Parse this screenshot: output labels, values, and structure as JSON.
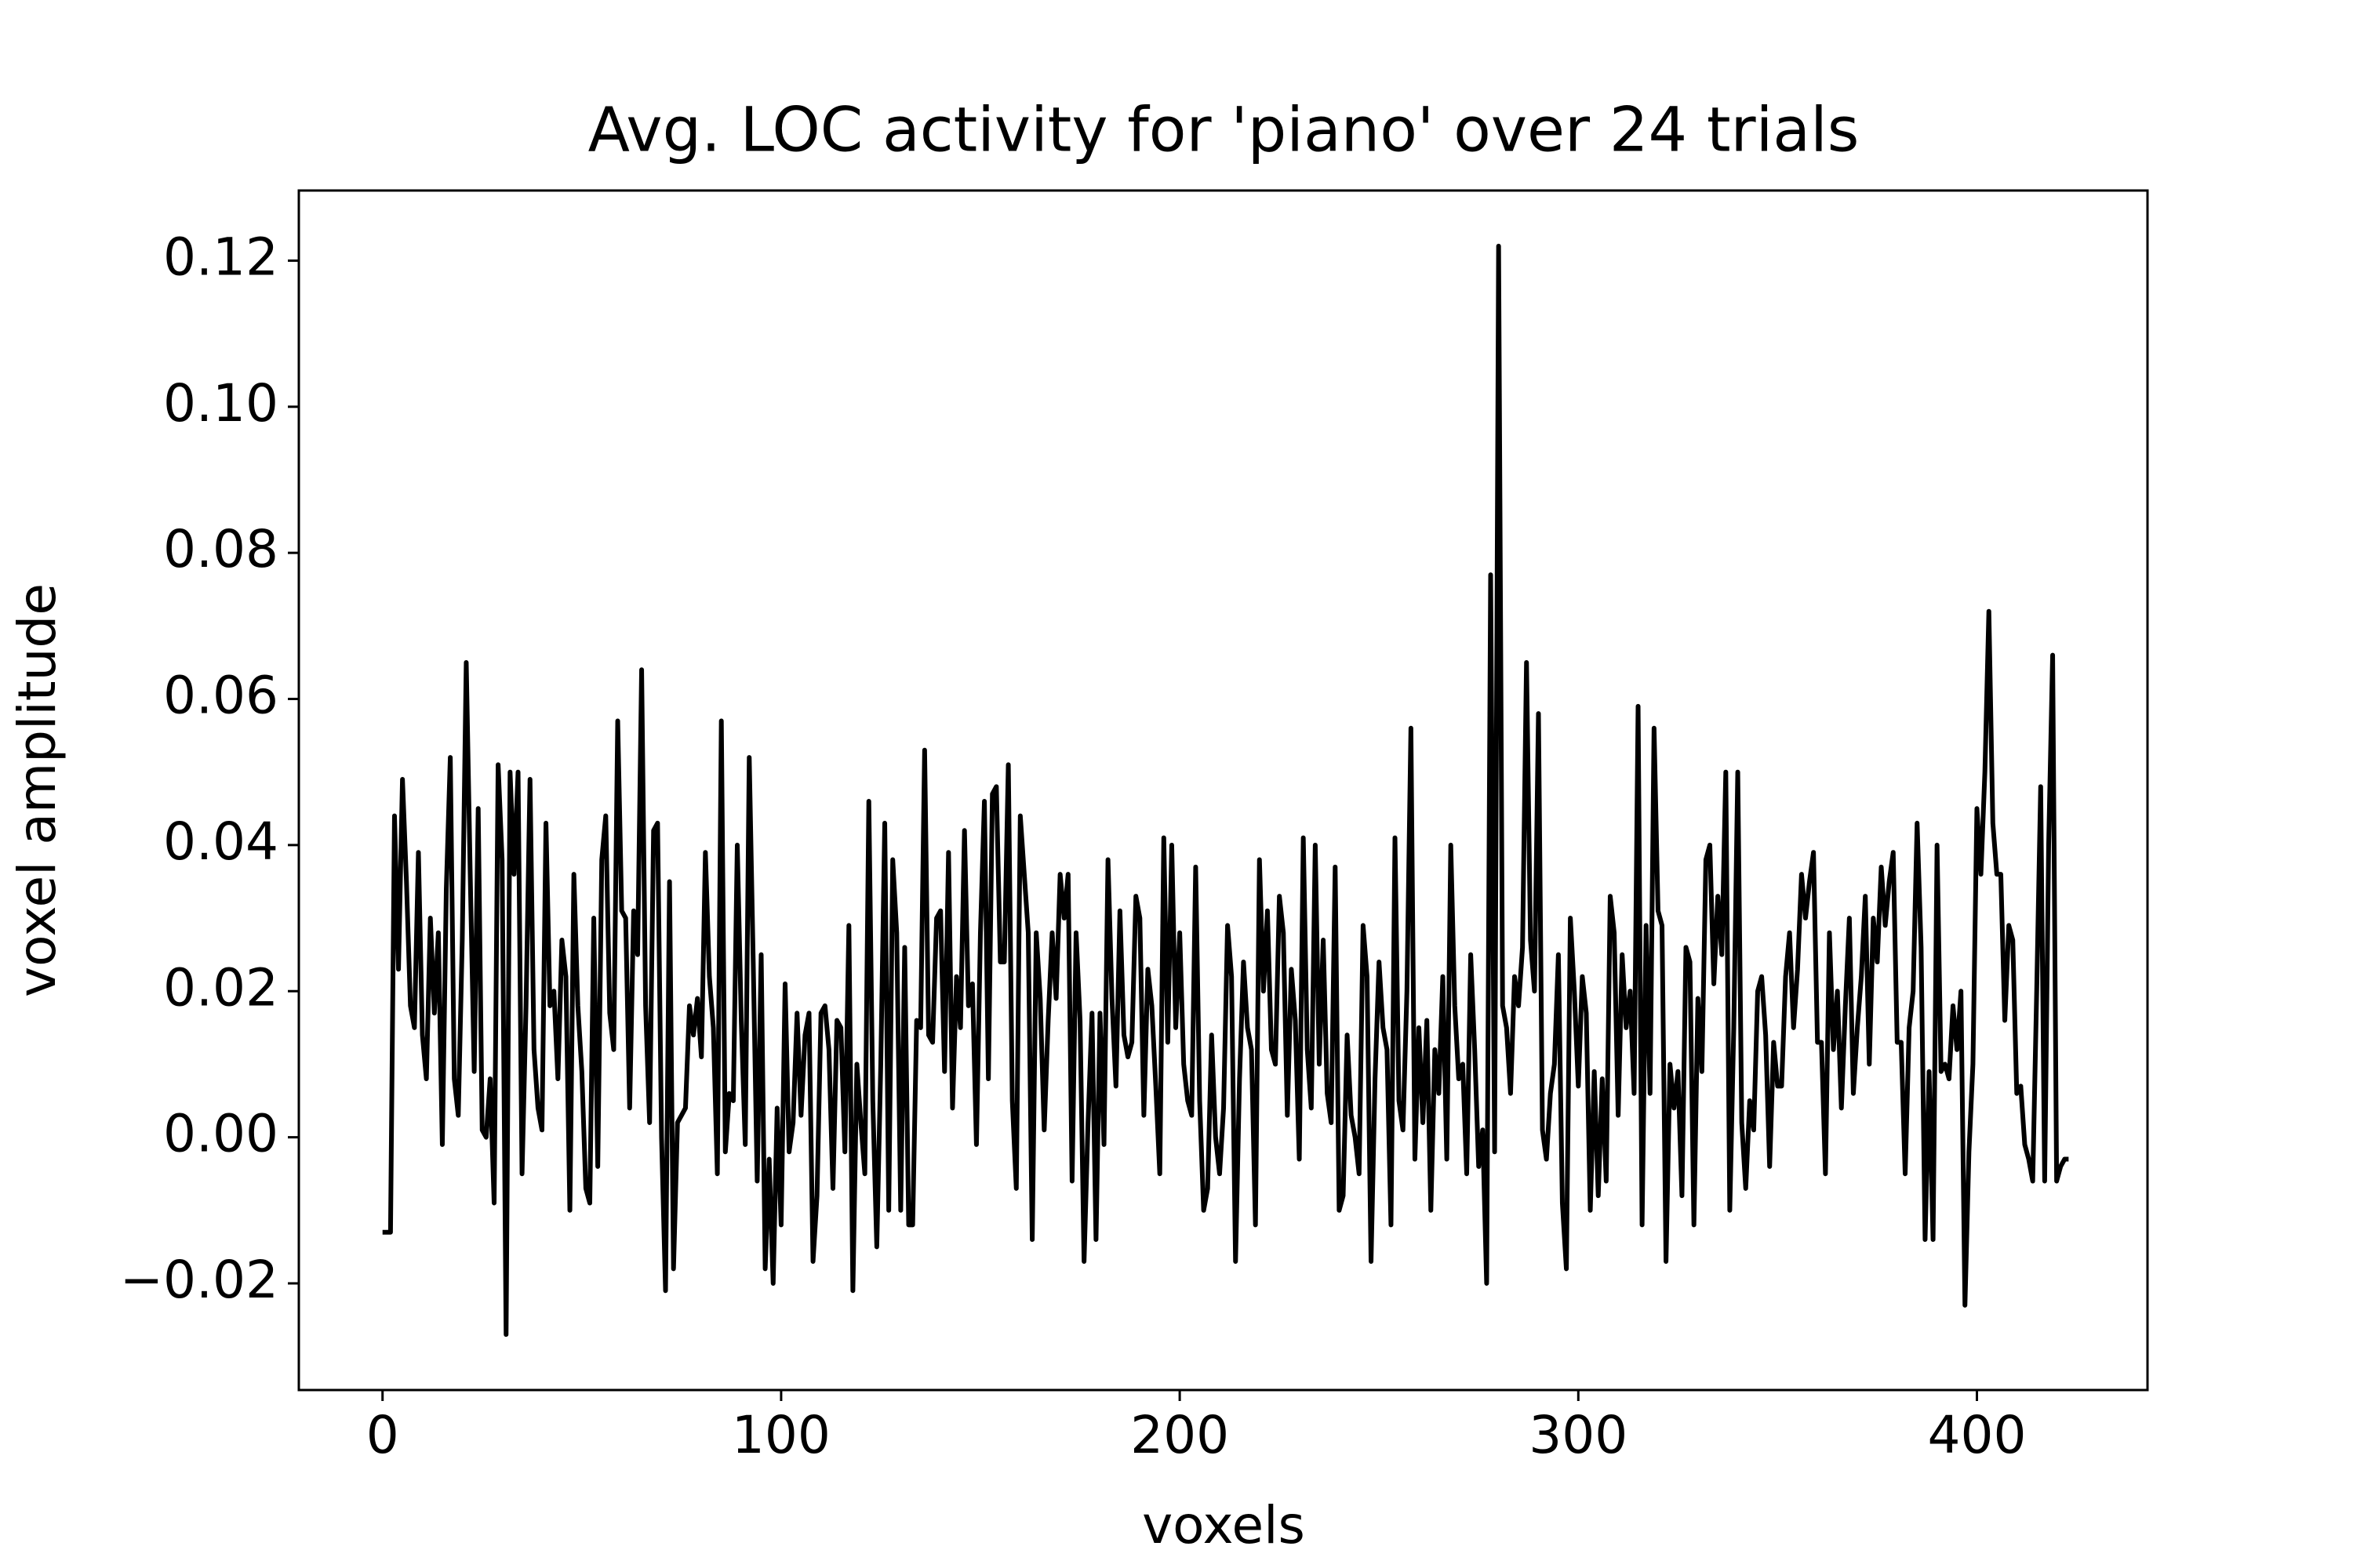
{
  "chart_data": {
    "type": "line",
    "title": "Avg. LOC activity for 'piano' over 24 trials",
    "xlabel": "voxels",
    "ylabel": "voxel amplitude",
    "color": "#000000",
    "xlim": [
      -21,
      442.8
    ],
    "ylim": [
      -0.0346,
      0.1296
    ],
    "xticks": [
      0,
      100,
      200,
      300,
      400
    ],
    "yticks": [
      {
        "value": -0.02,
        "label": "−0.02"
      },
      {
        "value": 0,
        "label": "0.00"
      },
      {
        "value": 0.02,
        "label": "0.02"
      },
      {
        "value": 0.04,
        "label": "0.04"
      },
      {
        "value": 0.06,
        "label": "0.06"
      },
      {
        "value": 0.08,
        "label": "0.08"
      },
      {
        "value": 0.1,
        "label": "0.10"
      },
      {
        "value": 0.12,
        "label": "0.12"
      }
    ],
    "values": [
      -0.013,
      -0.013,
      -0.013,
      0.044,
      0.023,
      0.049,
      0.035,
      0.018,
      0.015,
      0.039,
      0.014,
      0.008,
      0.03,
      0.017,
      0.028,
      -0.001,
      0.034,
      0.052,
      0.008,
      0.003,
      0.027,
      0.065,
      0.036,
      0.009,
      0.045,
      0.001,
      0.0,
      0.008,
      -0.009,
      0.051,
      0.038,
      -0.027,
      0.05,
      0.036,
      0.05,
      -0.005,
      0.018,
      0.049,
      0.012,
      0.004,
      0.001,
      0.043,
      0.018,
      0.02,
      0.008,
      0.027,
      0.022,
      -0.01,
      0.036,
      0.018,
      0.009,
      -0.007,
      -0.009,
      0.03,
      -0.004,
      0.038,
      0.044,
      0.017,
      0.012,
      0.057,
      0.031,
      0.03,
      0.004,
      0.031,
      0.025,
      0.064,
      0.018,
      0.002,
      0.042,
      0.043,
      0.0,
      -0.021,
      0.035,
      -0.018,
      0.002,
      0.003,
      0.004,
      0.018,
      0.014,
      0.019,
      0.011,
      0.039,
      0.022,
      0.015,
      -0.005,
      0.057,
      -0.002,
      0.006,
      0.005,
      0.04,
      0.016,
      -0.001,
      0.052,
      0.024,
      -0.006,
      0.025,
      -0.018,
      -0.003,
      -0.02,
      0.004,
      -0.012,
      0.021,
      -0.002,
      0.002,
      0.017,
      0.003,
      0.014,
      0.017,
      -0.017,
      -0.008,
      0.017,
      0.018,
      0.012,
      -0.007,
      0.016,
      0.015,
      -0.002,
      0.029,
      -0.021,
      0.01,
      0.002,
      -0.005,
      0.046,
      0.005,
      -0.015,
      0.01,
      0.043,
      -0.01,
      0.038,
      0.028,
      -0.01,
      0.026,
      -0.012,
      -0.012,
      0.016,
      0.015,
      0.053,
      0.014,
      0.013,
      0.03,
      0.031,
      0.009,
      0.039,
      0.004,
      0.022,
      0.015,
      0.042,
      0.018,
      0.021,
      -0.001,
      0.028,
      0.046,
      0.008,
      0.047,
      0.048,
      0.024,
      0.024,
      0.051,
      0.005,
      -0.007,
      0.044,
      0.036,
      0.028,
      -0.014,
      0.028,
      0.019,
      0.001,
      0.016,
      0.028,
      0.019,
      0.036,
      0.03,
      0.036,
      -0.006,
      0.028,
      0.016,
      -0.017,
      0.002,
      0.017,
      -0.014,
      0.017,
      -0.001,
      0.038,
      0.019,
      0.007,
      0.031,
      0.014,
      0.011,
      0.013,
      0.033,
      0.03,
      0.003,
      0.023,
      0.018,
      0.007,
      -0.005,
      0.041,
      0.013,
      0.04,
      0.015,
      0.028,
      0.01,
      0.005,
      0.003,
      0.037,
      0.005,
      -0.01,
      -0.007,
      0.014,
      0.0,
      -0.005,
      0.004,
      0.029,
      0.022,
      -0.017,
      0.008,
      0.024,
      0.015,
      0.012,
      -0.012,
      0.038,
      0.02,
      0.031,
      0.012,
      0.01,
      0.033,
      0.028,
      0.003,
      0.023,
      0.016,
      -0.003,
      0.041,
      0.012,
      0.004,
      0.04,
      0.01,
      0.027,
      0.006,
      0.002,
      0.037,
      -0.01,
      -0.008,
      0.014,
      0.003,
      0.0,
      -0.005,
      0.029,
      0.022,
      -0.017,
      0.008,
      0.024,
      0.015,
      0.012,
      -0.012,
      0.041,
      0.005,
      0.001,
      0.02,
      0.056,
      -0.003,
      0.015,
      0.002,
      0.016,
      -0.01,
      0.012,
      0.006,
      0.022,
      -0.003,
      0.04,
      0.018,
      0.008,
      0.01,
      -0.005,
      0.025,
      0.012,
      -0.004,
      0.001,
      -0.02,
      0.077,
      -0.002,
      0.122,
      0.018,
      0.015,
      0.006,
      0.022,
      0.018,
      0.026,
      0.065,
      0.027,
      0.02,
      0.058,
      0.001,
      -0.003,
      0.006,
      0.01,
      0.025,
      -0.009,
      -0.018,
      0.03,
      0.02,
      0.007,
      0.022,
      0.017,
      -0.01,
      0.009,
      -0.008,
      0.008,
      -0.006,
      0.033,
      0.028,
      0.003,
      0.025,
      0.015,
      0.02,
      0.006,
      0.059,
      -0.012,
      0.029,
      0.006,
      0.056,
      0.031,
      0.029,
      -0.017,
      0.01,
      0.004,
      0.009,
      -0.008,
      0.026,
      0.024,
      -0.012,
      0.019,
      0.009,
      0.038,
      0.04,
      0.021,
      0.033,
      0.025,
      0.05,
      -0.01,
      0.015,
      0.05,
      0.002,
      -0.007,
      0.005,
      0.001,
      0.02,
      0.022,
      0.014,
      -0.004,
      0.013,
      0.007,
      0.007,
      0.022,
      0.028,
      0.015,
      0.023,
      0.036,
      0.03,
      0.035,
      0.039,
      0.013,
      0.013,
      -0.005,
      0.028,
      0.012,
      0.02,
      0.004,
      0.018,
      0.03,
      0.006,
      0.015,
      0.022,
      0.033,
      0.01,
      0.03,
      0.024,
      0.037,
      0.029,
      0.035,
      0.039,
      0.013,
      0.013,
      -0.005,
      0.015,
      0.02,
      0.043,
      0.026,
      -0.014,
      0.009,
      -0.014,
      0.04,
      0.009,
      0.01,
      0.008,
      0.018,
      0.012,
      0.02,
      -0.023,
      -0.002,
      0.01,
      0.045,
      0.036,
      0.05,
      0.072,
      0.043,
      0.036,
      0.036,
      0.016,
      0.029,
      0.027,
      0.006,
      0.007,
      -0.001,
      -0.003,
      -0.006,
      0.02,
      0.048,
      -0.006,
      0.04,
      0.066,
      -0.006,
      -0.004,
      -0.003,
      -0.003
    ]
  }
}
